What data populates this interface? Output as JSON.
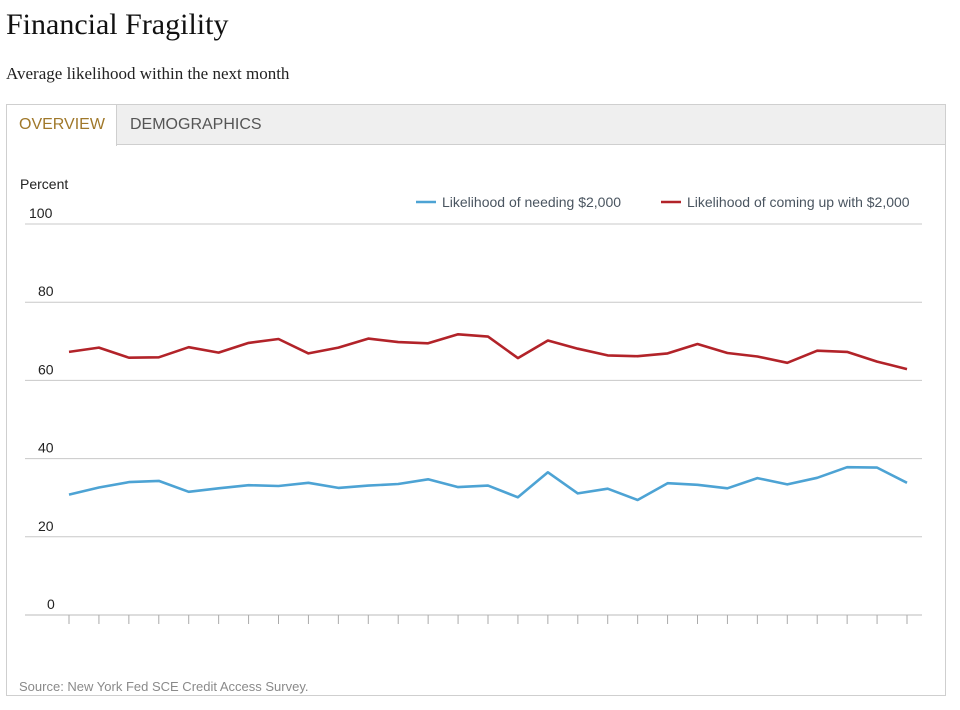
{
  "header": {
    "title": "Financial Fragility",
    "subtitle": "Average likelihood within the next month"
  },
  "tabs": [
    {
      "label": "OVERVIEW",
      "active": true
    },
    {
      "label": "DEMOGRAPHICS",
      "active": false
    }
  ],
  "footer": {
    "source": "Source: New York Fed SCE Credit Access Survey."
  },
  "colors": {
    "needing": "#4da3d4",
    "coming_up": "#b22329",
    "grid": "#c8c8c8",
    "tab_active_text": "#a0782a"
  },
  "chart_data": {
    "type": "line",
    "ylabel": "Percent",
    "ylim": [
      0,
      100
    ],
    "yticks": [
      0,
      20,
      40,
      60,
      80,
      100
    ],
    "legend_position": "top-right",
    "grid": true,
    "num_points": 29,
    "series": [
      {
        "name": "Likelihood of needing $2,000",
        "color": "#4da3d4",
        "values": [
          30.8,
          32.6,
          34.0,
          34.3,
          31.5,
          32.4,
          33.2,
          33.0,
          33.8,
          32.5,
          33.1,
          33.5,
          34.7,
          32.7,
          33.1,
          30.1,
          36.5,
          31.1,
          32.3,
          29.4,
          33.7,
          33.3,
          32.4,
          35.0,
          33.4,
          35.1,
          37.8,
          37.7,
          33.8
        ]
      },
      {
        "name": "Likelihood of coming up with $2,000",
        "color": "#b22329",
        "values": [
          67.3,
          68.4,
          65.8,
          65.9,
          68.5,
          67.1,
          69.6,
          70.6,
          66.9,
          68.4,
          70.7,
          69.8,
          69.5,
          71.8,
          71.2,
          65.7,
          70.2,
          68.1,
          66.4,
          66.2,
          66.9,
          69.3,
          67.0,
          66.1,
          64.5,
          67.6,
          67.3,
          64.8,
          62.9
        ]
      }
    ]
  }
}
